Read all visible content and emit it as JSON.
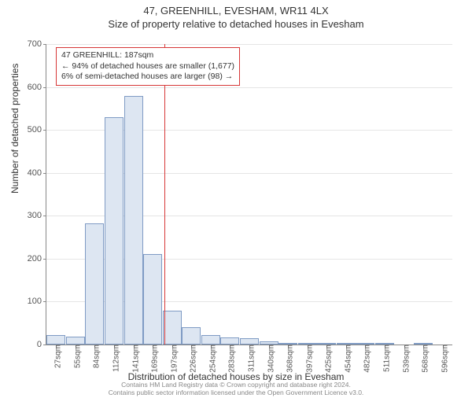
{
  "header": {
    "title": "47, GREENHILL, EVESHAM, WR11 4LX",
    "subtitle": "Size of property relative to detached houses in Evesham"
  },
  "chart": {
    "type": "histogram",
    "ylabel": "Number of detached properties",
    "xlabel": "Distribution of detached houses by size in Evesham",
    "ylim_max": 700,
    "ytick_step": 100,
    "yticks": [
      0,
      100,
      200,
      300,
      400,
      500,
      600,
      700
    ],
    "bar_fill": "#dde6f2",
    "bar_border": "#7f9bc4",
    "grid_color": "#e5e5e5",
    "axis_color": "#888888",
    "background": "#ffffff",
    "bars": [
      {
        "label": "27sqm",
        "value": 22
      },
      {
        "label": "55sqm",
        "value": 18
      },
      {
        "label": "84sqm",
        "value": 283
      },
      {
        "label": "112sqm",
        "value": 530
      },
      {
        "label": "141sqm",
        "value": 580
      },
      {
        "label": "169sqm",
        "value": 210
      },
      {
        "label": "197sqm",
        "value": 78
      },
      {
        "label": "226sqm",
        "value": 40
      },
      {
        "label": "254sqm",
        "value": 22
      },
      {
        "label": "283sqm",
        "value": 16
      },
      {
        "label": "311sqm",
        "value": 14
      },
      {
        "label": "340sqm",
        "value": 8
      },
      {
        "label": "368sqm",
        "value": 3
      },
      {
        "label": "397sqm",
        "value": 2
      },
      {
        "label": "425sqm",
        "value": 2
      },
      {
        "label": "454sqm",
        "value": 1
      },
      {
        "label": "482sqm",
        "value": 1
      },
      {
        "label": "511sqm",
        "value": 1
      },
      {
        "label": "539sqm",
        "value": 0
      },
      {
        "label": "568sqm",
        "value": 1
      },
      {
        "label": "596sqm",
        "value": 0
      }
    ],
    "marker": {
      "value_sqm": 187,
      "color": "#d63636"
    },
    "annotation": {
      "line1": "47 GREENHILL: 187sqm",
      "line2": "← 94% of detached houses are smaller (1,677)",
      "line3": "6% of semi-detached houses are larger (98) →",
      "border_color": "#d63636",
      "background": "#ffffff",
      "fontsize": 10.5
    }
  },
  "footer": {
    "line1": "Contains HM Land Registry data © Crown copyright and database right 2024.",
    "line2": "Contains public sector information licensed under the Open Government Licence v3.0."
  }
}
